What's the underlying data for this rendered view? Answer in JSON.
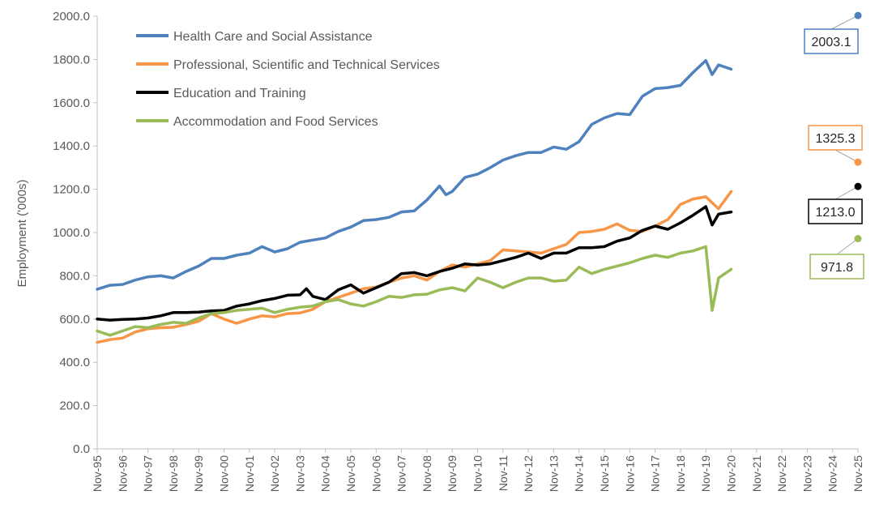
{
  "chart_data": {
    "type": "line",
    "ylabel": "Employment ('000s)",
    "xlabel": "",
    "ylim": [
      0,
      2000
    ],
    "y_ticks": [
      "0.0",
      "200.0",
      "400.0",
      "600.0",
      "800.0",
      "1000.0",
      "1200.0",
      "1400.0",
      "1600.0",
      "1800.0",
      "2000.0"
    ],
    "x_ticks": [
      "Nov-95",
      "Nov-96",
      "Nov-97",
      "Nov-98",
      "Nov-99",
      "Nov-00",
      "Nov-01",
      "Nov-02",
      "Nov-03",
      "Nov-04",
      "Nov-05",
      "Nov-06",
      "Nov-07",
      "Nov-08",
      "Nov-09",
      "Nov-10",
      "Nov-11",
      "Nov-12",
      "Nov-13",
      "Nov-14",
      "Nov-15",
      "Nov-16",
      "Nov-17",
      "Nov-18",
      "Nov-19",
      "Nov-20",
      "Nov-21",
      "Nov-22",
      "Nov-23",
      "Nov-24",
      "Nov-25"
    ],
    "grid": false,
    "legend_position": "top-left",
    "series": [
      {
        "name": "Health Care and Social Assistance",
        "color": "#4f81bd",
        "points": [
          [
            "1995-11",
            738
          ],
          [
            "1996-05",
            756
          ],
          [
            "1996-11",
            760
          ],
          [
            "1997-05",
            780
          ],
          [
            "1997-11",
            795
          ],
          [
            "1998-05",
            800
          ],
          [
            "1998-11",
            790
          ],
          [
            "1999-05",
            820
          ],
          [
            "1999-11",
            845
          ],
          [
            "2000-05",
            880
          ],
          [
            "2000-11",
            880
          ],
          [
            "2001-05",
            895
          ],
          [
            "2001-11",
            905
          ],
          [
            "2002-05",
            935
          ],
          [
            "2002-11",
            910
          ],
          [
            "2003-05",
            925
          ],
          [
            "2003-11",
            955
          ],
          [
            "2004-05",
            965
          ],
          [
            "2004-11",
            975
          ],
          [
            "2005-05",
            1005
          ],
          [
            "2005-11",
            1025
          ],
          [
            "2006-05",
            1055
          ],
          [
            "2006-11",
            1060
          ],
          [
            "2007-05",
            1070
          ],
          [
            "2007-11",
            1095
          ],
          [
            "2008-05",
            1100
          ],
          [
            "2008-11",
            1150
          ],
          [
            "2009-05",
            1215
          ],
          [
            "2009-08",
            1175
          ],
          [
            "2009-11",
            1190
          ],
          [
            "2010-05",
            1255
          ],
          [
            "2010-11",
            1270
          ],
          [
            "2011-05",
            1300
          ],
          [
            "2011-11",
            1335
          ],
          [
            "2012-05",
            1355
          ],
          [
            "2012-11",
            1370
          ],
          [
            "2013-05",
            1370
          ],
          [
            "2013-11",
            1395
          ],
          [
            "2014-05",
            1385
          ],
          [
            "2014-11",
            1420
          ],
          [
            "2015-05",
            1500
          ],
          [
            "2015-11",
            1530
          ],
          [
            "2016-05",
            1550
          ],
          [
            "2016-11",
            1545
          ],
          [
            "2017-05",
            1630
          ],
          [
            "2017-11",
            1665
          ],
          [
            "2018-05",
            1670
          ],
          [
            "2018-11",
            1680
          ],
          [
            "2019-05",
            1740
          ],
          [
            "2019-11",
            1795
          ],
          [
            "2020-02",
            1730
          ],
          [
            "2020-05",
            1775
          ],
          [
            "2020-11",
            1755
          ]
        ]
      },
      {
        "name": "Professional, Scientific and Technical Services",
        "color": "#f79646",
        "points": [
          [
            "1995-11",
            492
          ],
          [
            "1996-05",
            505
          ],
          [
            "1996-11",
            512
          ],
          [
            "1997-05",
            540
          ],
          [
            "1997-11",
            555
          ],
          [
            "1998-05",
            560
          ],
          [
            "1998-11",
            562
          ],
          [
            "1999-05",
            575
          ],
          [
            "1999-11",
            590
          ],
          [
            "2000-05",
            625
          ],
          [
            "2000-11",
            600
          ],
          [
            "2001-05",
            580
          ],
          [
            "2001-11",
            600
          ],
          [
            "2002-05",
            615
          ],
          [
            "2002-11",
            610
          ],
          [
            "2003-05",
            625
          ],
          [
            "2003-11",
            628
          ],
          [
            "2004-05",
            645
          ],
          [
            "2004-11",
            680
          ],
          [
            "2005-05",
            700
          ],
          [
            "2005-11",
            720
          ],
          [
            "2006-05",
            740
          ],
          [
            "2006-11",
            748
          ],
          [
            "2007-05",
            770
          ],
          [
            "2007-11",
            790
          ],
          [
            "2008-05",
            800
          ],
          [
            "2008-11",
            780
          ],
          [
            "2009-05",
            820
          ],
          [
            "2009-11",
            850
          ],
          [
            "2010-05",
            840
          ],
          [
            "2010-11",
            855
          ],
          [
            "2011-05",
            870
          ],
          [
            "2011-11",
            920
          ],
          [
            "2012-05",
            915
          ],
          [
            "2012-11",
            910
          ],
          [
            "2013-05",
            905
          ],
          [
            "2013-11",
            925
          ],
          [
            "2014-05",
            945
          ],
          [
            "2014-11",
            1000
          ],
          [
            "2015-05",
            1005
          ],
          [
            "2015-11",
            1015
          ],
          [
            "2016-05",
            1040
          ],
          [
            "2016-11",
            1010
          ],
          [
            "2017-05",
            1005
          ],
          [
            "2017-11",
            1030
          ],
          [
            "2018-05",
            1060
          ],
          [
            "2018-11",
            1130
          ],
          [
            "2019-05",
            1155
          ],
          [
            "2019-11",
            1165
          ],
          [
            "2020-05",
            1110
          ],
          [
            "2020-11",
            1190
          ]
        ]
      },
      {
        "name": "Education and Training",
        "color": "#000000",
        "points": [
          [
            "1995-11",
            600
          ],
          [
            "1996-05",
            595
          ],
          [
            "1996-11",
            598
          ],
          [
            "1997-05",
            600
          ],
          [
            "1997-11",
            605
          ],
          [
            "1998-05",
            615
          ],
          [
            "1998-11",
            630
          ],
          [
            "1999-05",
            630
          ],
          [
            "1999-11",
            632
          ],
          [
            "2000-05",
            638
          ],
          [
            "2000-11",
            640
          ],
          [
            "2001-05",
            660
          ],
          [
            "2001-11",
            670
          ],
          [
            "2002-05",
            685
          ],
          [
            "2002-11",
            695
          ],
          [
            "2003-05",
            710
          ],
          [
            "2003-11",
            712
          ],
          [
            "2004-02",
            740
          ],
          [
            "2004-05",
            705
          ],
          [
            "2004-11",
            690
          ],
          [
            "2005-05",
            735
          ],
          [
            "2005-11",
            758
          ],
          [
            "2006-05",
            720
          ],
          [
            "2006-11",
            745
          ],
          [
            "2007-05",
            770
          ],
          [
            "2007-11",
            810
          ],
          [
            "2008-05",
            815
          ],
          [
            "2008-11",
            800
          ],
          [
            "2009-05",
            820
          ],
          [
            "2009-11",
            835
          ],
          [
            "2010-05",
            855
          ],
          [
            "2010-11",
            850
          ],
          [
            "2011-05",
            855
          ],
          [
            "2011-11",
            870
          ],
          [
            "2012-05",
            885
          ],
          [
            "2012-11",
            905
          ],
          [
            "2013-05",
            880
          ],
          [
            "2013-11",
            905
          ],
          [
            "2014-05",
            905
          ],
          [
            "2014-11",
            930
          ],
          [
            "2015-05",
            930
          ],
          [
            "2015-11",
            935
          ],
          [
            "2016-05",
            960
          ],
          [
            "2016-11",
            975
          ],
          [
            "2017-05",
            1010
          ],
          [
            "2017-11",
            1030
          ],
          [
            "2018-05",
            1015
          ],
          [
            "2018-11",
            1045
          ],
          [
            "2019-05",
            1080
          ],
          [
            "2019-11",
            1120
          ],
          [
            "2020-02",
            1035
          ],
          [
            "2020-05",
            1085
          ],
          [
            "2020-11",
            1095
          ]
        ]
      },
      {
        "name": "Accommodation and Food Services",
        "color": "#9bbb59",
        "points": [
          [
            "1995-11",
            545
          ],
          [
            "1996-05",
            525
          ],
          [
            "1996-11",
            545
          ],
          [
            "1997-05",
            565
          ],
          [
            "1997-11",
            560
          ],
          [
            "1998-05",
            575
          ],
          [
            "1998-11",
            585
          ],
          [
            "1999-05",
            580
          ],
          [
            "1999-11",
            605
          ],
          [
            "2000-05",
            625
          ],
          [
            "2000-11",
            630
          ],
          [
            "2001-05",
            640
          ],
          [
            "2001-11",
            645
          ],
          [
            "2002-05",
            650
          ],
          [
            "2002-11",
            630
          ],
          [
            "2003-05",
            645
          ],
          [
            "2003-11",
            655
          ],
          [
            "2004-05",
            660
          ],
          [
            "2004-11",
            680
          ],
          [
            "2005-05",
            690
          ],
          [
            "2005-11",
            670
          ],
          [
            "2006-05",
            660
          ],
          [
            "2006-11",
            680
          ],
          [
            "2007-05",
            705
          ],
          [
            "2007-11",
            700
          ],
          [
            "2008-05",
            712
          ],
          [
            "2008-11",
            715
          ],
          [
            "2009-05",
            735
          ],
          [
            "2009-11",
            745
          ],
          [
            "2010-05",
            730
          ],
          [
            "2010-11",
            790
          ],
          [
            "2011-05",
            770
          ],
          [
            "2011-11",
            745
          ],
          [
            "2012-05",
            770
          ],
          [
            "2012-11",
            790
          ],
          [
            "2013-05",
            790
          ],
          [
            "2013-11",
            775
          ],
          [
            "2014-05",
            780
          ],
          [
            "2014-11",
            840
          ],
          [
            "2015-05",
            810
          ],
          [
            "2015-11",
            830
          ],
          [
            "2016-05",
            845
          ],
          [
            "2016-11",
            860
          ],
          [
            "2017-05",
            880
          ],
          [
            "2017-11",
            895
          ],
          [
            "2018-05",
            885
          ],
          [
            "2018-11",
            905
          ],
          [
            "2019-05",
            915
          ],
          [
            "2019-11",
            935
          ],
          [
            "2020-02",
            640
          ],
          [
            "2020-05",
            790
          ],
          [
            "2020-11",
            830
          ]
        ]
      }
    ],
    "projections": [
      {
        "color": "#4f81bd",
        "x": "2025-11",
        "y": 2003.1,
        "label": "2003.1"
      },
      {
        "color": "#f79646",
        "x": "2025-11",
        "y": 1325.3,
        "label": "1325.3"
      },
      {
        "color": "#000000",
        "x": "2025-11",
        "y": 1213.0,
        "label": "1213.0"
      },
      {
        "color": "#9bbb59",
        "x": "2025-11",
        "y": 971.8,
        "label": "971.8"
      }
    ]
  }
}
